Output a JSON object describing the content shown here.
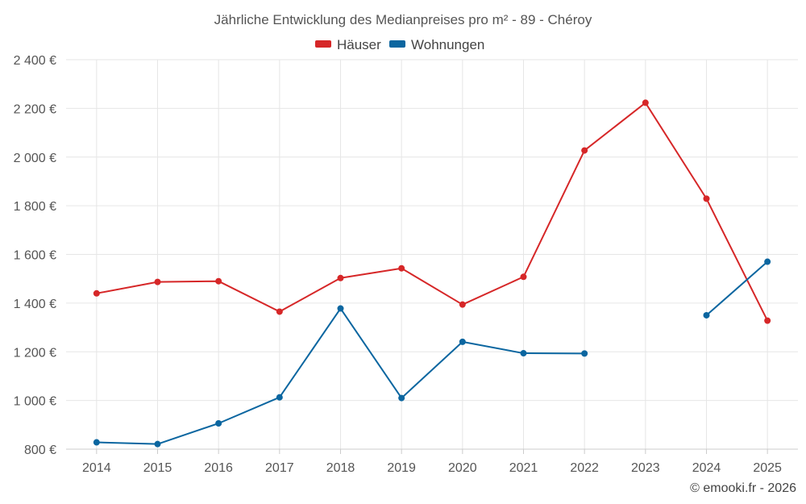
{
  "chart_data": {
    "type": "line",
    "title": "Jährliche Entwicklung des Medianpreises pro m² - 89 - Chéroy",
    "xlabel": "",
    "ylabel": "",
    "categories": [
      "2014",
      "2015",
      "2016",
      "2017",
      "2018",
      "2019",
      "2020",
      "2021",
      "2022",
      "2023",
      "2024",
      "2025"
    ],
    "ylim": [
      800,
      2400
    ],
    "yticks": [
      800,
      1000,
      1200,
      1400,
      1600,
      1800,
      2000,
      2200,
      2400
    ],
    "ytick_labels": [
      "800 €",
      "1 000 €",
      "1 200 €",
      "1 400 €",
      "1 600 €",
      "1 800 €",
      "2 000 €",
      "2 200 €",
      "2 400 €"
    ],
    "grid": true,
    "legend_position": "top-center",
    "series": [
      {
        "name": "Häuser",
        "color": "#d62728",
        "values": [
          1440,
          1487,
          1490,
          1365,
          1503,
          1543,
          1394,
          1508,
          2027,
          2223,
          1829,
          1328
        ]
      },
      {
        "name": "Wohnungen",
        "color": "#0b66a0",
        "values": [
          828,
          821,
          906,
          1013,
          1378,
          1010,
          1241,
          1194,
          1193,
          null,
          1350,
          1570
        ]
      }
    ]
  },
  "credit": "© emooki.fr - 2026"
}
